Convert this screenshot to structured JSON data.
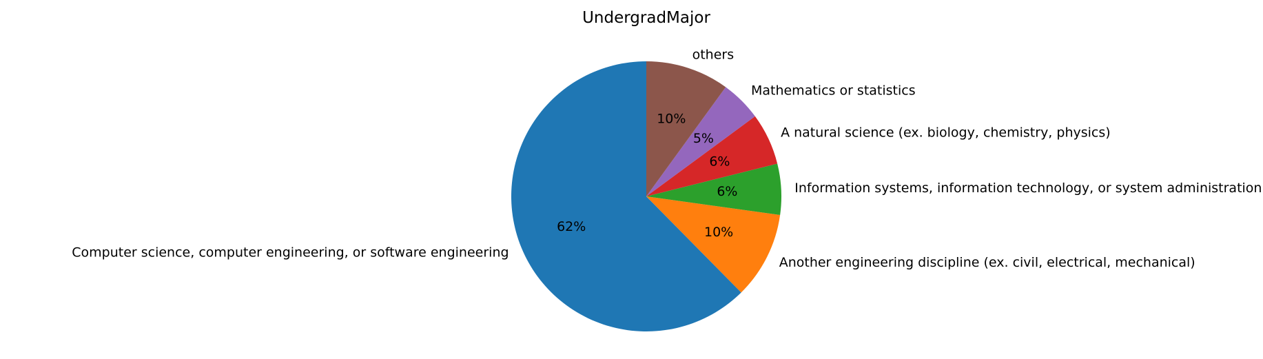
{
  "chart_data": {
    "type": "pie",
    "title": "UndergradMajor",
    "categories": [
      "Computer science, computer engineering, or software engineering",
      "Another engineering discipline (ex. civil, electrical, mechanical)",
      "Information systems, information technology, or system administration",
      "A natural science (ex. biology, chemistry, physics)",
      "Mathematics or statistics",
      "others"
    ],
    "values": [
      62.4,
      10.4,
      6.1,
      6.2,
      4.9,
      10.0
    ],
    "value_labels": [
      "62%",
      "10%",
      "6%",
      "6%",
      "5%",
      "10%"
    ],
    "colors": [
      "#1f77b4",
      "#ff7f0e",
      "#2ca02c",
      "#d62728",
      "#9467bd",
      "#8c564b"
    ],
    "start_angle_deg": 90,
    "direction": "counterclockwise"
  }
}
